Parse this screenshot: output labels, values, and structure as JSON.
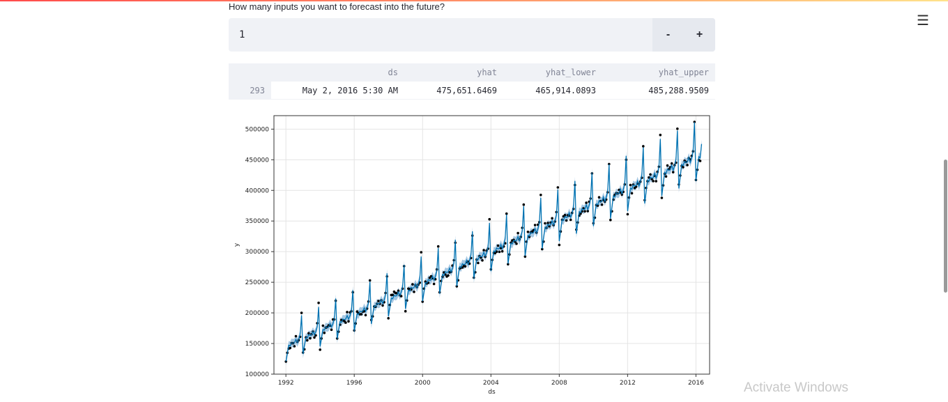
{
  "question": "How many inputs you want to forecast into the future?",
  "stepper": {
    "value": "1",
    "minus": "-",
    "plus": "+"
  },
  "forecast_table": {
    "columns": [
      "ds",
      "yhat",
      "yhat_lower",
      "yhat_upper"
    ],
    "rows": [
      {
        "index": "293",
        "ds": "May 2, 2016 5:30 AM",
        "yhat": "475,651.6469",
        "yhat_lower": "465,914.0893",
        "yhat_upper": "485,288.9509"
      }
    ]
  },
  "menu_icon": "hamburger-menu-icon",
  "watermark": "Activate Windows",
  "chart_data": {
    "type": "line",
    "xlabel": "ds",
    "ylabel": "y",
    "xlim": [
      1991.3,
      2016.8
    ],
    "ylim": [
      100000,
      522000
    ],
    "xticks": [
      1992,
      1996,
      2000,
      2004,
      2008,
      2012,
      2016
    ],
    "yticks": [
      100000,
      150000,
      200000,
      250000,
      300000,
      350000,
      400000,
      450000,
      500000
    ],
    "grid": true,
    "series": [
      {
        "kind": "forecast line with uncertainty band",
        "color": "#0072B2",
        "band_color": "#a6c8e3"
      },
      {
        "kind": "actual points",
        "color": "#000000"
      }
    ],
    "trend": {
      "start": [
        1992.0,
        143000
      ],
      "end": [
        2016.4,
        455000
      ]
    },
    "seasonal_peak": {
      "month": 11,
      "amplitude_start": 45000,
      "amplitude_end": 70000
    },
    "forecast_end": {
      "x": 2016.33,
      "y": 475651.6469
    }
  }
}
